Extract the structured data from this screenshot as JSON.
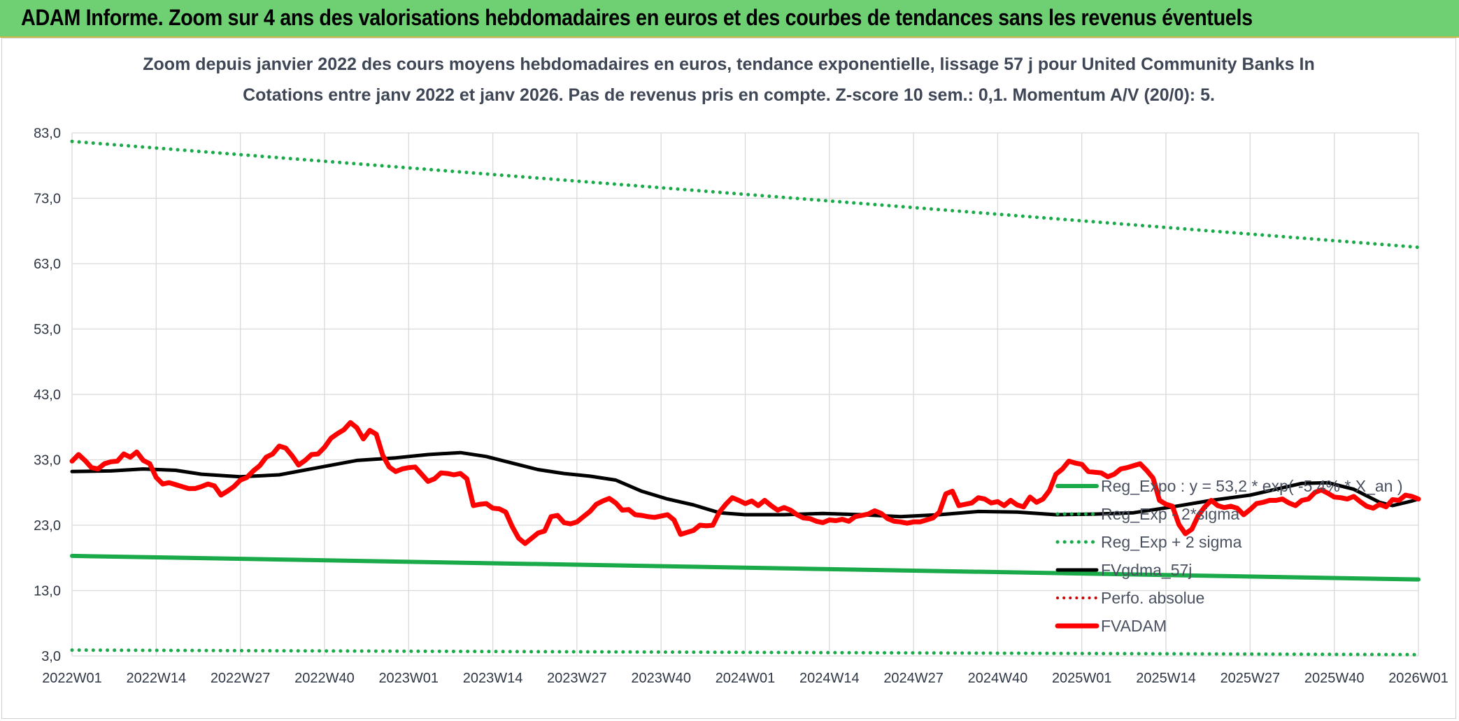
{
  "banner": {
    "title": "ADAM Informe. Zoom sur 4 ans des valorisations hebdomadaires en euros et des courbes de tendances sans les revenus éventuels"
  },
  "colors": {
    "banner_bg": "#6fcf73",
    "trend_green": "#1aaa4a",
    "price_red": "#ff0000",
    "smooth_black": "#000000",
    "perf_red": "#cc0000",
    "grid": "#d9d9d9"
  },
  "chart_data": {
    "type": "line",
    "title": "Zoom depuis janvier 2022 des cours moyens hebdomadaires en euros, tendance exponentielle, lissage 57 j pour United Community Banks In",
    "subtitle": "Cotations entre janv 2022 et janv 2026. Pas de revenus pris en compte. Z-score 10 sem.: 0,1. Momentum A/V (20/0): 5.",
    "ylim": [
      3,
      83
    ],
    "y_ticks": [
      "3,0",
      "13,0",
      "23,0",
      "33,0",
      "43,0",
      "53,0",
      "63,0",
      "73,0",
      "83,0"
    ],
    "x_ticks": [
      "2022W01",
      "2022W14",
      "2022W27",
      "2022W40",
      "2023W01",
      "2023W14",
      "2023W27",
      "2023W40",
      "2024W01",
      "2024W14",
      "2024W27",
      "2024W40",
      "2025W01",
      "2025W14",
      "2025W27",
      "2025W40",
      "2026W01"
    ],
    "weeks_total": 208,
    "grid": true,
    "legend_position": "right",
    "series": [
      {
        "name": "Reg_Expo : y = 53,2 * exp( -5,4% * X_an )",
        "style": "solid",
        "points": [
          [
            0,
            18.3
          ],
          [
            208,
            14.7
          ]
        ]
      },
      {
        "name": "Reg_Exp - 2*sigma",
        "style": "dotted",
        "points": [
          [
            0,
            3.9
          ],
          [
            208,
            3.2
          ]
        ]
      },
      {
        "name": "Reg_Exp + 2 sigma",
        "style": "dotted",
        "points": [
          [
            0,
            81.7
          ],
          [
            208,
            65.5
          ]
        ]
      },
      {
        "name": "FVgdma_57j",
        "style": "solid",
        "points": [
          [
            0,
            31.2
          ],
          [
            6,
            31.3
          ],
          [
            11,
            31.6
          ],
          [
            16,
            31.4
          ],
          [
            20,
            30.8
          ],
          [
            26,
            30.4
          ],
          [
            32,
            30.7
          ],
          [
            38,
            31.8
          ],
          [
            44,
            32.9
          ],
          [
            50,
            33.3
          ],
          [
            55,
            33.8
          ],
          [
            60,
            34.1
          ],
          [
            64,
            33.5
          ],
          [
            68,
            32.5
          ],
          [
            72,
            31.5
          ],
          [
            76,
            30.9
          ],
          [
            80,
            30.5
          ],
          [
            84,
            29.9
          ],
          [
            88,
            28.2
          ],
          [
            92,
            27.0
          ],
          [
            96,
            26.1
          ],
          [
            100,
            24.9
          ],
          [
            104,
            24.6
          ],
          [
            110,
            24.6
          ],
          [
            116,
            24.8
          ],
          [
            122,
            24.6
          ],
          [
            128,
            24.3
          ],
          [
            134,
            24.6
          ],
          [
            140,
            25.1
          ],
          [
            146,
            25.0
          ],
          [
            152,
            24.6
          ],
          [
            158,
            24.7
          ],
          [
            164,
            24.9
          ],
          [
            170,
            25.8
          ],
          [
            176,
            26.8
          ],
          [
            182,
            27.6
          ],
          [
            186,
            28.5
          ],
          [
            190,
            29.4
          ],
          [
            194,
            29.5
          ],
          [
            198,
            28.5
          ],
          [
            202,
            26.5
          ],
          [
            204,
            26.0
          ],
          [
            207,
            26.7
          ],
          [
            208,
            27.0
          ]
        ]
      },
      {
        "name": "Perfo. absolue",
        "style": "dotted",
        "points": []
      },
      {
        "name": "FVADAM",
        "style": "solid",
        "points": [
          [
            0,
            32.8
          ],
          [
            1,
            33.8
          ],
          [
            2,
            32.9
          ],
          [
            3,
            31.8
          ],
          [
            4,
            31.6
          ],
          [
            5,
            32.4
          ],
          [
            6,
            32.7
          ],
          [
            7,
            32.8
          ],
          [
            8,
            33.9
          ],
          [
            9,
            33.4
          ],
          [
            10,
            34.2
          ],
          [
            11,
            32.9
          ],
          [
            12,
            32.4
          ],
          [
            13,
            30.3
          ],
          [
            14,
            29.3
          ],
          [
            15,
            29.5
          ],
          [
            16,
            29.2
          ],
          [
            17,
            28.9
          ],
          [
            18,
            28.6
          ],
          [
            19,
            28.6
          ],
          [
            20,
            28.9
          ],
          [
            21,
            29.3
          ],
          [
            22,
            29.0
          ],
          [
            23,
            27.6
          ],
          [
            24,
            28.2
          ],
          [
            25,
            28.9
          ],
          [
            26,
            29.9
          ],
          [
            27,
            30.3
          ],
          [
            28,
            31.3
          ],
          [
            29,
            32.1
          ],
          [
            30,
            33.4
          ],
          [
            31,
            33.9
          ],
          [
            32,
            35.1
          ],
          [
            33,
            34.8
          ],
          [
            34,
            33.6
          ],
          [
            35,
            32.2
          ],
          [
            36,
            32.9
          ],
          [
            37,
            33.8
          ],
          [
            38,
            33.9
          ],
          [
            39,
            34.9
          ],
          [
            40,
            36.3
          ],
          [
            41,
            37.0
          ],
          [
            42,
            37.6
          ],
          [
            43,
            38.7
          ],
          [
            44,
            37.9
          ],
          [
            45,
            36.2
          ],
          [
            46,
            37.5
          ],
          [
            47,
            36.9
          ],
          [
            48,
            33.7
          ],
          [
            49,
            31.9
          ],
          [
            50,
            31.2
          ],
          [
            51,
            31.6
          ],
          [
            52,
            31.8
          ],
          [
            53,
            31.9
          ],
          [
            54,
            30.8
          ],
          [
            55,
            29.7
          ],
          [
            56,
            30.1
          ],
          [
            57,
            31.0
          ],
          [
            58,
            30.9
          ],
          [
            59,
            30.7
          ],
          [
            60,
            30.9
          ],
          [
            61,
            30.1
          ],
          [
            62,
            26.0
          ],
          [
            63,
            26.2
          ],
          [
            64,
            26.3
          ],
          [
            65,
            25.6
          ],
          [
            66,
            25.5
          ],
          [
            67,
            25.0
          ],
          [
            68,
            22.8
          ],
          [
            69,
            21.0
          ],
          [
            70,
            20.2
          ],
          [
            71,
            21.0
          ],
          [
            72,
            21.8
          ],
          [
            73,
            22.1
          ],
          [
            74,
            24.3
          ],
          [
            75,
            24.5
          ],
          [
            76,
            23.4
          ],
          [
            77,
            23.2
          ],
          [
            78,
            23.5
          ],
          [
            79,
            24.3
          ],
          [
            80,
            25.1
          ],
          [
            81,
            26.2
          ],
          [
            82,
            26.7
          ],
          [
            83,
            27.1
          ],
          [
            84,
            26.4
          ],
          [
            85,
            25.3
          ],
          [
            86,
            25.4
          ],
          [
            87,
            24.6
          ],
          [
            88,
            24.5
          ],
          [
            89,
            24.3
          ],
          [
            90,
            24.2
          ],
          [
            91,
            24.4
          ],
          [
            92,
            24.6
          ],
          [
            93,
            23.8
          ],
          [
            94,
            21.6
          ],
          [
            95,
            21.9
          ],
          [
            96,
            22.2
          ],
          [
            97,
            23.0
          ],
          [
            98,
            22.9
          ],
          [
            99,
            23.0
          ],
          [
            100,
            25.0
          ],
          [
            101,
            26.2
          ],
          [
            102,
            27.2
          ],
          [
            103,
            26.8
          ],
          [
            104,
            26.3
          ],
          [
            105,
            26.7
          ],
          [
            106,
            26.0
          ],
          [
            107,
            26.8
          ],
          [
            108,
            26.0
          ],
          [
            109,
            25.3
          ],
          [
            110,
            25.7
          ],
          [
            111,
            25.3
          ],
          [
            112,
            24.6
          ],
          [
            113,
            24.1
          ],
          [
            114,
            24.0
          ],
          [
            115,
            23.6
          ],
          [
            116,
            23.4
          ],
          [
            117,
            23.8
          ],
          [
            118,
            23.7
          ],
          [
            119,
            23.9
          ],
          [
            120,
            23.6
          ],
          [
            121,
            24.3
          ],
          [
            122,
            24.5
          ],
          [
            123,
            24.7
          ],
          [
            124,
            25.2
          ],
          [
            125,
            24.8
          ],
          [
            126,
            24.0
          ],
          [
            127,
            23.6
          ],
          [
            128,
            23.5
          ],
          [
            129,
            23.3
          ],
          [
            130,
            23.5
          ],
          [
            131,
            23.5
          ],
          [
            132,
            23.8
          ],
          [
            133,
            24.1
          ],
          [
            134,
            25.0
          ],
          [
            135,
            27.8
          ],
          [
            136,
            28.2
          ],
          [
            137,
            26.0
          ],
          [
            138,
            26.2
          ],
          [
            139,
            26.4
          ],
          [
            140,
            27.2
          ],
          [
            141,
            27.0
          ],
          [
            142,
            26.4
          ],
          [
            143,
            26.6
          ],
          [
            144,
            26.0
          ],
          [
            145,
            26.8
          ],
          [
            146,
            26.1
          ],
          [
            147,
            25.8
          ],
          [
            148,
            27.3
          ],
          [
            149,
            26.5
          ],
          [
            150,
            27.0
          ],
          [
            151,
            28.3
          ],
          [
            152,
            30.8
          ],
          [
            153,
            31.6
          ],
          [
            154,
            32.8
          ],
          [
            155,
            32.5
          ],
          [
            156,
            32.3
          ],
          [
            157,
            31.2
          ],
          [
            158,
            31.1
          ],
          [
            159,
            31.0
          ],
          [
            160,
            30.4
          ],
          [
            161,
            30.8
          ],
          [
            162,
            31.6
          ],
          [
            163,
            31.8
          ],
          [
            164,
            32.1
          ],
          [
            165,
            32.4
          ],
          [
            166,
            31.4
          ],
          [
            167,
            30.2
          ],
          [
            168,
            26.8
          ],
          [
            169,
            26.2
          ],
          [
            170,
            25.9
          ],
          [
            171,
            23.1
          ],
          [
            172,
            21.7
          ],
          [
            173,
            22.4
          ],
          [
            174,
            24.5
          ],
          [
            175,
            25.8
          ],
          [
            176,
            26.8
          ],
          [
            177,
            26.0
          ],
          [
            178,
            25.7
          ],
          [
            179,
            25.9
          ],
          [
            180,
            25.6
          ],
          [
            181,
            24.6
          ],
          [
            182,
            25.4
          ],
          [
            183,
            26.3
          ],
          [
            184,
            26.5
          ],
          [
            185,
            26.8
          ],
          [
            186,
            26.8
          ],
          [
            187,
            27.0
          ],
          [
            188,
            26.4
          ],
          [
            189,
            26.0
          ],
          [
            190,
            26.8
          ],
          [
            191,
            27.0
          ],
          [
            192,
            28.0
          ],
          [
            193,
            28.4
          ],
          [
            194,
            27.9
          ],
          [
            195,
            27.3
          ],
          [
            196,
            27.2
          ],
          [
            197,
            27.0
          ],
          [
            198,
            27.4
          ],
          [
            199,
            26.6
          ],
          [
            200,
            25.9
          ],
          [
            201,
            25.6
          ],
          [
            202,
            26.2
          ],
          [
            203,
            25.8
          ],
          [
            204,
            26.9
          ],
          [
            205,
            26.8
          ],
          [
            206,
            27.6
          ],
          [
            207,
            27.4
          ],
          [
            208,
            27.0
          ]
        ]
      }
    ]
  }
}
